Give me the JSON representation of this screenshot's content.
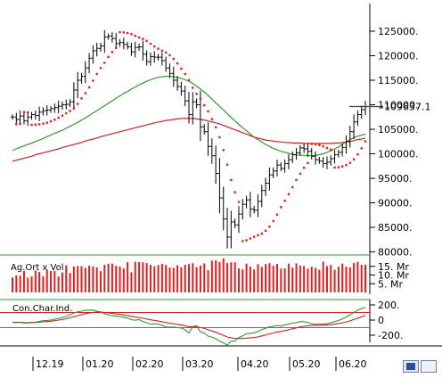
{
  "chart_data": [
    {
      "type": "candlestick",
      "panel": "price",
      "x_labels": [
        "12.19",
        "01.20",
        "02.20",
        "03.20",
        "04.20",
        "05.20",
        "06.20"
      ],
      "y_ticks": [
        "125000.",
        "120000.",
        "115000.",
        "110000.",
        "105000.",
        "100000.",
        "95000.",
        "90000.",
        "85000.",
        "80000."
      ],
      "ylim": [
        80000,
        127500
      ],
      "last_value_label": "109637.1",
      "last_value": 109637.1,
      "grid": false,
      "closes": [
        107500,
        107000,
        107700,
        106700,
        107500,
        108000,
        107800,
        108500,
        108800,
        108900,
        109200,
        109400,
        109700,
        110000,
        110100,
        110600,
        113000,
        115000,
        115800,
        117500,
        119500,
        121000,
        121500,
        122000,
        123800,
        124000,
        123500,
        122500,
        122700,
        122300,
        121800,
        120800,
        121700,
        121800,
        120300,
        118800,
        119800,
        119700,
        119700,
        119000,
        117500,
        116400,
        115000,
        113700,
        112800,
        110800,
        108000,
        110600,
        110000,
        105500,
        104500,
        101500,
        99600,
        96000,
        91000,
        86700,
        83000,
        86100,
        85500,
        87700,
        89700,
        90600,
        88700,
        88500,
        90300,
        92500,
        94000,
        95700,
        96500,
        97700,
        97000,
        98000,
        98800,
        99800,
        100200,
        101200,
        101000,
        100500,
        99500,
        98800,
        98500,
        98000,
        98300,
        99000,
        99800,
        100300,
        101300,
        102500,
        104500,
        106500,
        108000,
        109000,
        109637.1
      ],
      "series": [
        {
          "name": "",
          "type": "line",
          "color": "#2e9a2e",
          "values": [
            100700,
            101000,
            101300,
            101600,
            101900,
            102200,
            102500,
            102800,
            103100,
            103500,
            103800,
            104200,
            104500,
            104800,
            105200,
            105600,
            106000,
            106400,
            106900,
            107300,
            107800,
            108300,
            108800,
            109300,
            109800,
            110300,
            110800,
            111300,
            111800,
            112300,
            112700,
            113200,
            113600,
            114100,
            114400,
            114800,
            115100,
            115400,
            115600,
            115700,
            115800,
            115800,
            115700,
            115600,
            115400,
            115100,
            114800,
            114300,
            113800,
            113200,
            112600,
            111900,
            111200,
            110400,
            109700,
            108900,
            108200,
            107400,
            106700,
            106000,
            105300,
            104700,
            104000,
            103400,
            102900,
            102400,
            101900,
            101500,
            101100,
            100800,
            100500,
            100300,
            100100,
            99900,
            99800,
            99700,
            99700,
            99600,
            99600,
            99700,
            99800,
            100000,
            100300,
            100600,
            101000,
            101400,
            101900,
            102400,
            102900,
            103300,
            103600,
            103800,
            104000
          ]
        },
        {
          "name": "",
          "type": "line",
          "color": "#d42020",
          "values": [
            98500,
            98700,
            98900,
            99100,
            99300,
            99500,
            99800,
            100000,
            100200,
            100400,
            100600,
            100800,
            101000,
            101300,
            101500,
            101700,
            101900,
            102100,
            102300,
            102600,
            102800,
            103000,
            103200,
            103500,
            103700,
            103900,
            104100,
            104300,
            104500,
            104700,
            104900,
            105100,
            105300,
            105500,
            105700,
            105900,
            106100,
            106300,
            106500,
            106600,
            106800,
            106900,
            107000,
            107100,
            107200,
            107200,
            107200,
            107200,
            107100,
            107000,
            106900,
            106700,
            106500,
            106300,
            106100,
            105800,
            105500,
            105200,
            104900,
            104600,
            104300,
            104000,
            103700,
            103400,
            103200,
            103000,
            102800,
            102700,
            102600,
            102500,
            102400,
            102300,
            102300,
            102200,
            102200,
            102200,
            102100,
            102100,
            102100,
            102100,
            102100,
            102100,
            102100,
            102100,
            102200,
            102200,
            102300,
            102400,
            102500,
            102700,
            102900,
            103000,
            103200
          ]
        }
      ]
    },
    {
      "type": "bar",
      "panel": "volume",
      "label": "Ag.Ort x Vol",
      "y_ticks": [
        "15. Mr",
        "10. Mr",
        "5. Mr"
      ],
      "ylim": [
        0,
        20
      ],
      "values": [
        8.6,
        9.8,
        9.6,
        12.4,
        8.5,
        9.2,
        12.6,
        11.8,
        9.3,
        13.0,
        12.3,
        12.4,
        9.1,
        11.5,
        15.6,
        11.2,
        14.9,
        15.2,
        15.1,
        14.1,
        15.4,
        15.0,
        14.4,
        12.2,
        15.9,
        16.5,
        16.6,
        15.3,
        14.9,
        13.8,
        17.4,
        11.6,
        17.6,
        17.5,
        17.3,
        16.9,
        15.9,
        15.0,
        15.7,
        16.5,
        15.8,
        14.3,
        14.2,
        15.6,
        14.5,
        15.9,
        16.3,
        16.8,
        14.5,
        15.5,
        16.7,
        12.8,
        18.3,
        18.4,
        17.5,
        19.6,
        16.9,
        17.3,
        17.3,
        13.8,
        13.2,
        16.6,
        14.9,
        13.2,
        16.2,
        14.7,
        16.3,
        16.8,
        15.3,
        16.4,
        13.7,
        13.8,
        16.6,
        14.3,
        16.7,
        15.5,
        15.2,
        13.7,
        14.8,
        14.1,
        13.1,
        17.7,
        15.1,
        15.8,
        13.0,
        14.8,
        16.6,
        14.8,
        14.5,
        17.0,
        17.6,
        15.9,
        16.0
      ]
    },
    {
      "type": "line",
      "panel": "oscillator",
      "label": "Con.Char.Ind.",
      "y_ticks": [
        "200.",
        "0",
        "-200."
      ],
      "ylim": [
        -260,
        260
      ],
      "series": [
        {
          "name": "",
          "color": "#2e9a2e",
          "values": [
            -30,
            -32,
            -28,
            -40,
            -38,
            -30,
            -28,
            -18,
            -8,
            -5,
            0,
            10,
            22,
            35,
            48,
            70,
            92,
            110,
            118,
            128,
            130,
            132,
            118,
            105,
            86,
            70,
            58,
            52,
            44,
            38,
            26,
            6,
            -2,
            6,
            -20,
            -35,
            -55,
            -48,
            -55,
            -70,
            -92,
            -95,
            -92,
            -100,
            -105,
            -128,
            -170,
            -88,
            -75,
            -155,
            -172,
            -212,
            -225,
            -245,
            -280,
            -300,
            -330,
            -280,
            -275,
            -230,
            -210,
            -180,
            -175,
            -170,
            -150,
            -125,
            -108,
            -90,
            -82,
            -72,
            -80,
            -64,
            -55,
            -40,
            -35,
            -20,
            -22,
            -30,
            -48,
            -55,
            -52,
            -55,
            -48,
            -36,
            -20,
            -5,
            15,
            40,
            70,
            100,
            130,
            150,
            170
          ]
        },
        {
          "name": "",
          "color": "#d42020",
          "values": [
            -30,
            -31,
            -30,
            -33,
            -34,
            -33,
            -32,
            -29,
            -24,
            -19,
            -15,
            -8,
            0,
            9,
            18,
            31,
            45,
            59,
            71,
            83,
            93,
            101,
            105,
            105,
            101,
            95,
            88,
            81,
            74,
            67,
            59,
            49,
            40,
            33,
            24,
            14,
            3,
            -5,
            -13,
            -22,
            -32,
            -41,
            -49,
            -57,
            -64,
            -74,
            -89,
            -89,
            -87,
            -99,
            -111,
            -128,
            -144,
            -161,
            -181,
            -201,
            -224,
            -234,
            -242,
            -244,
            -244,
            -239,
            -234,
            -229,
            -221,
            -209,
            -196,
            -182,
            -170,
            -158,
            -150,
            -139,
            -128,
            -115,
            -104,
            -91,
            -82,
            -75,
            -72,
            -70,
            -68,
            -67,
            -64,
            -60,
            -54,
            -46,
            -37,
            -25,
            -10,
            7,
            25,
            44,
            63
          ]
        }
      ]
    }
  ]
}
